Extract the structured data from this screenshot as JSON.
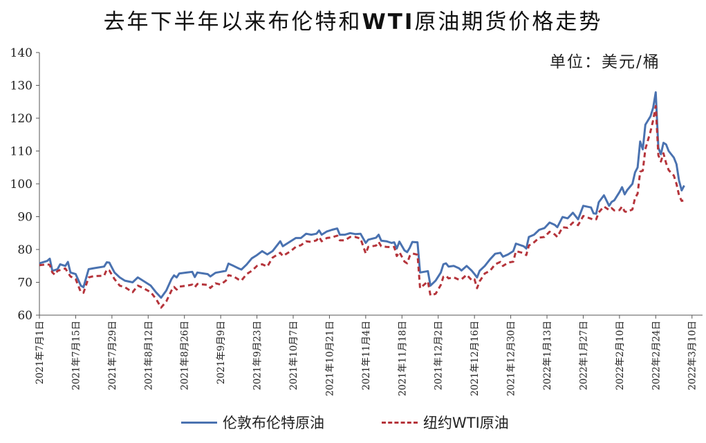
{
  "chart_data": {
    "type": "line",
    "title": "去年下半年以来布伦特和WTI原油期货价格走势",
    "unit_note": "单位：美元/桶",
    "ylim": [
      60,
      140
    ],
    "y_ticks": [
      60,
      70,
      80,
      90,
      100,
      110,
      120,
      130,
      140
    ],
    "x_tick_labels": [
      "2021年7月1日",
      "2021年7月15日",
      "2021年7月29日",
      "2021年8月12日",
      "2021年8月26日",
      "2021年9月9日",
      "2021年9月23日",
      "2021年10月7日",
      "2021年10月21日",
      "2021年11月4日",
      "2021年11月18日",
      "2021年12月2日",
      "2021年12月16日",
      "2021年12月30日",
      "2022年1月13日",
      "2022年1月27日",
      "2022年2月10日",
      "2022年2月24日",
      "2022年3月10日"
    ],
    "x_tick_days": [
      0,
      14,
      28,
      42,
      56,
      70,
      84,
      98,
      112,
      126,
      140,
      154,
      168,
      182,
      196,
      210,
      224,
      238,
      252
    ],
    "x_range_days": [
      0,
      258
    ],
    "grid": false,
    "legend_position": "bottom",
    "series": [
      {
        "name": "伦敦布伦特原油",
        "color": "#4A72B0",
        "style": "solid",
        "points": [
          [
            0,
            75.8
          ],
          [
            3,
            76.5
          ],
          [
            4,
            77.2
          ],
          [
            5,
            73.5
          ],
          [
            7,
            74
          ],
          [
            8,
            75.5
          ],
          [
            10,
            75
          ],
          [
            11,
            76.2
          ],
          [
            12,
            73
          ],
          [
            14,
            72.5
          ],
          [
            16,
            69
          ],
          [
            17,
            68.5
          ],
          [
            19,
            74
          ],
          [
            21,
            74.3
          ],
          [
            25,
            74.8
          ],
          [
            26,
            76.1
          ],
          [
            27,
            76
          ],
          [
            29,
            73
          ],
          [
            31,
            71.5
          ],
          [
            33,
            70.5
          ],
          [
            36,
            70
          ],
          [
            38,
            71.5
          ],
          [
            40,
            70.5
          ],
          [
            43,
            69
          ],
          [
            45,
            67
          ],
          [
            47,
            65.3
          ],
          [
            49,
            67.5
          ],
          [
            51,
            71
          ],
          [
            52,
            72.1
          ],
          [
            53,
            71.5
          ],
          [
            54,
            72.7
          ],
          [
            57,
            73
          ],
          [
            59,
            73.2
          ],
          [
            60,
            71.6
          ],
          [
            61,
            73
          ],
          [
            65,
            72.5
          ],
          [
            66,
            71.8
          ],
          [
            68,
            72.9
          ],
          [
            70,
            73.2
          ],
          [
            72,
            73.5
          ],
          [
            73,
            75.7
          ],
          [
            75,
            75
          ],
          [
            77,
            74.2
          ],
          [
            78,
            73.9
          ],
          [
            80,
            75.4
          ],
          [
            82,
            77.3
          ],
          [
            84,
            78.3
          ],
          [
            86,
            79.5
          ],
          [
            88,
            78.5
          ],
          [
            90,
            79.5
          ],
          [
            93,
            82.5
          ],
          [
            94,
            81
          ],
          [
            95,
            81.5
          ],
          [
            97,
            82.5
          ],
          [
            99,
            83.5
          ],
          [
            101,
            83.5
          ],
          [
            103,
            84.8
          ],
          [
            105,
            84.5
          ],
          [
            107,
            84.8
          ],
          [
            108,
            85.8
          ],
          [
            109,
            84.5
          ],
          [
            111,
            85.5
          ],
          [
            113,
            86
          ],
          [
            115,
            86.4
          ],
          [
            116,
            84.5
          ],
          [
            118,
            84.5
          ],
          [
            120,
            85
          ],
          [
            122,
            84.7
          ],
          [
            124,
            84.8
          ],
          [
            126,
            82
          ],
          [
            127,
            83
          ],
          [
            130,
            83.6
          ],
          [
            131,
            84.5
          ],
          [
            132,
            82.7
          ],
          [
            134,
            82.5
          ],
          [
            136,
            82
          ],
          [
            137,
            82.2
          ],
          [
            138,
            80.3
          ],
          [
            139,
            82.4
          ],
          [
            141,
            79.7
          ],
          [
            142,
            79.2
          ],
          [
            143,
            80.5
          ],
          [
            144,
            82.3
          ],
          [
            146,
            82.2
          ],
          [
            147,
            73
          ],
          [
            150,
            73.4
          ],
          [
            151,
            69
          ],
          [
            153,
            70.5
          ],
          [
            155,
            73
          ],
          [
            156,
            75.5
          ],
          [
            157,
            75.8
          ],
          [
            158,
            74.8
          ],
          [
            160,
            75
          ],
          [
            162,
            74.3
          ],
          [
            163,
            73.6
          ],
          [
            165,
            75
          ],
          [
            167,
            73.5
          ],
          [
            168,
            72.5
          ],
          [
            169,
            71.5
          ],
          [
            170,
            73.5
          ],
          [
            172,
            75
          ],
          [
            174,
            77
          ],
          [
            176,
            78.7
          ],
          [
            178,
            79
          ],
          [
            179,
            77.8
          ],
          [
            181,
            78.5
          ],
          [
            183,
            79.5
          ],
          [
            184,
            81.8
          ],
          [
            187,
            81
          ],
          [
            188,
            80.3
          ],
          [
            189,
            83.8
          ],
          [
            191,
            84.5
          ],
          [
            193,
            86
          ],
          [
            195,
            86.5
          ],
          [
            197,
            88.2
          ],
          [
            199,
            87.5
          ],
          [
            200,
            86.8
          ],
          [
            202,
            89.9
          ],
          [
            204,
            89.5
          ],
          [
            206,
            91.2
          ],
          [
            208,
            89.2
          ],
          [
            210,
            93.3
          ],
          [
            213,
            92.8
          ],
          [
            214,
            91
          ],
          [
            215,
            90.9
          ],
          [
            216,
            94.4
          ],
          [
            218,
            96.5
          ],
          [
            220,
            93.3
          ],
          [
            221,
            94.5
          ],
          [
            222,
            95
          ],
          [
            224,
            97.5
          ],
          [
            225,
            99
          ],
          [
            226,
            96.8
          ],
          [
            227,
            98.1
          ],
          [
            229,
            100
          ],
          [
            230,
            103.5
          ],
          [
            231,
            105
          ],
          [
            232,
            112.9
          ],
          [
            233,
            110.5
          ],
          [
            234,
            118
          ],
          [
            236,
            120.6
          ],
          [
            237,
            123.2
          ],
          [
            238,
            127.9
          ],
          [
            239,
            111
          ],
          [
            240,
            109
          ],
          [
            241,
            112.5
          ],
          [
            242,
            112
          ],
          [
            243,
            110
          ],
          [
            245,
            108
          ],
          [
            246,
            106
          ],
          [
            247,
            101
          ],
          [
            248,
            98
          ],
          [
            249,
            99.5
          ]
        ]
      },
      {
        "name": "纽约WTI原油",
        "color": "#B5343B",
        "style": "dashed",
        "points": [
          [
            0,
            75.2
          ],
          [
            3,
            75.5
          ],
          [
            4,
            75.3
          ],
          [
            5,
            73
          ],
          [
            6,
            72.3
          ],
          [
            7,
            73.5
          ],
          [
            9,
            74
          ],
          [
            10,
            74.2
          ],
          [
            12,
            71.8
          ],
          [
            14,
            71
          ],
          [
            16,
            67
          ],
          [
            17,
            66.8
          ],
          [
            19,
            71.5
          ],
          [
            21,
            71.9
          ],
          [
            25,
            72
          ],
          [
            26,
            73.9
          ],
          [
            27,
            73.6
          ],
          [
            29,
            71
          ],
          [
            31,
            69
          ],
          [
            33,
            68.5
          ],
          [
            36,
            67
          ],
          [
            38,
            69
          ],
          [
            40,
            68.3
          ],
          [
            43,
            67
          ],
          [
            45,
            65
          ],
          [
            47,
            62.3
          ],
          [
            49,
            64.2
          ],
          [
            51,
            67.5
          ],
          [
            52,
            68.6
          ],
          [
            53,
            67.8
          ],
          [
            54,
            68.7
          ],
          [
            57,
            69
          ],
          [
            59,
            69.3
          ],
          [
            60,
            68.5
          ],
          [
            61,
            69.5
          ],
          [
            65,
            69.2
          ],
          [
            66,
            68.3
          ],
          [
            68,
            69.7
          ],
          [
            70,
            69.3
          ],
          [
            72,
            70.5
          ],
          [
            73,
            72.2
          ],
          [
            75,
            71.8
          ],
          [
            77,
            70.8
          ],
          [
            78,
            70.5
          ],
          [
            80,
            72.5
          ],
          [
            82,
            73.5
          ],
          [
            84,
            75
          ],
          [
            86,
            75.5
          ],
          [
            88,
            74.8
          ],
          [
            90,
            77.5
          ],
          [
            93,
            79
          ],
          [
            94,
            78
          ],
          [
            95,
            78.5
          ],
          [
            97,
            79.5
          ],
          [
            99,
            80.8
          ],
          [
            101,
            81.3
          ],
          [
            103,
            82.5
          ],
          [
            105,
            82.3
          ],
          [
            107,
            82.8
          ],
          [
            108,
            83.8
          ],
          [
            109,
            82.5
          ],
          [
            111,
            83.5
          ],
          [
            113,
            83.7
          ],
          [
            115,
            84.2
          ],
          [
            116,
            82.8
          ],
          [
            118,
            82.8
          ],
          [
            120,
            83.8
          ],
          [
            122,
            83.8
          ],
          [
            124,
            83.3
          ],
          [
            126,
            78.8
          ],
          [
            127,
            80.8
          ],
          [
            130,
            81.2
          ],
          [
            131,
            82.3
          ],
          [
            132,
            81
          ],
          [
            134,
            80.8
          ],
          [
            136,
            80.7
          ],
          [
            137,
            80.8
          ],
          [
            138,
            78
          ],
          [
            139,
            79.2
          ],
          [
            141,
            76.3
          ],
          [
            142,
            75.8
          ],
          [
            143,
            78
          ],
          [
            144,
            78.8
          ],
          [
            146,
            78.4
          ],
          [
            147,
            68.2
          ],
          [
            150,
            70.3
          ],
          [
            151,
            66
          ],
          [
            153,
            66.5
          ],
          [
            155,
            69.2
          ],
          [
            156,
            71.7
          ],
          [
            157,
            72
          ],
          [
            158,
            71.2
          ],
          [
            160,
            71.5
          ],
          [
            162,
            70.8
          ],
          [
            163,
            70.9
          ],
          [
            165,
            72.3
          ],
          [
            167,
            70.6
          ],
          [
            168,
            70.9
          ],
          [
            169,
            68.2
          ],
          [
            170,
            70.3
          ],
          [
            172,
            72.7
          ],
          [
            174,
            73.5
          ],
          [
            176,
            75.5
          ],
          [
            178,
            76.2
          ],
          [
            179,
            75
          ],
          [
            181,
            76
          ],
          [
            183,
            76.3
          ],
          [
            184,
            79.5
          ],
          [
            187,
            78.9
          ],
          [
            188,
            78.3
          ],
          [
            189,
            81.2
          ],
          [
            191,
            82.2
          ],
          [
            193,
            83.6
          ],
          [
            195,
            83.8
          ],
          [
            197,
            85.4
          ],
          [
            199,
            84.6
          ],
          [
            200,
            83.8
          ],
          [
            202,
            86.8
          ],
          [
            204,
            86.6
          ],
          [
            206,
            88.2
          ],
          [
            208,
            87.4
          ],
          [
            210,
            90.2
          ],
          [
            213,
            89.4
          ],
          [
            214,
            89
          ],
          [
            215,
            89.2
          ],
          [
            216,
            91.3
          ],
          [
            218,
            93.1
          ],
          [
            220,
            92
          ],
          [
            221,
            92.6
          ],
          [
            222,
            91.9
          ],
          [
            224,
            92
          ],
          [
            225,
            93.1
          ],
          [
            226,
            91.6
          ],
          [
            227,
            91.4
          ],
          [
            229,
            92.2
          ],
          [
            230,
            95.7
          ],
          [
            231,
            97
          ],
          [
            232,
            103.7
          ],
          [
            233,
            104
          ],
          [
            234,
            110.6
          ],
          [
            236,
            116
          ],
          [
            237,
            119.4
          ],
          [
            238,
            123.7
          ],
          [
            239,
            108.7
          ],
          [
            240,
            106.8
          ],
          [
            241,
            109.3
          ],
          [
            242,
            106.3
          ],
          [
            243,
            104.2
          ],
          [
            245,
            102.5
          ],
          [
            246,
            100
          ],
          [
            247,
            96.5
          ],
          [
            248,
            94.8
          ],
          [
            249,
            95
          ]
        ]
      }
    ]
  }
}
